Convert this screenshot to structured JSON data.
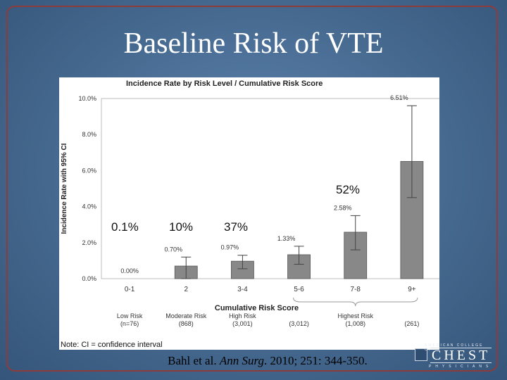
{
  "slide": {
    "title": "Baseline Risk of VTE",
    "overlay_labels": [
      "0.1%",
      "10%",
      "37%",
      "52%"
    ],
    "citation": {
      "authors": "Bahl et al.",
      "journal": "Ann Surg",
      "details": ". 2010; 251: 344-350."
    },
    "logo": {
      "top_text": "AMERICAN COLLEGE OF",
      "main_text": "CHEST",
      "bottom_text": "PHYSICIANS"
    }
  },
  "chart_data": {
    "type": "bar",
    "title": "Incidence Rate by Risk Level / Cumulative Risk Score",
    "xlabel": "Cumulative Risk Score",
    "ylabel": "Incidence Rate with 95% CI",
    "ylim": [
      0,
      10
    ],
    "yticks": [
      "0.0%",
      "2.0%",
      "4.0%",
      "6.0%",
      "8.0%",
      "10.0%"
    ],
    "categories": [
      "0-1",
      "2",
      "3-4",
      "5-6",
      "7-8",
      "9+"
    ],
    "values": [
      0.0,
      0.7,
      0.97,
      1.33,
      2.58,
      6.51
    ],
    "value_labels": [
      "0.00%",
      "0.70%",
      "0.97%",
      "1.33%",
      "2.58%",
      "6.51%"
    ],
    "ci_low": [
      0.0,
      0.0,
      0.55,
      0.8,
      1.6,
      4.5
    ],
    "ci_high": [
      0.0,
      1.2,
      1.3,
      1.8,
      3.5,
      9.6
    ],
    "counts": [
      "(n=76)",
      "(868)",
      "(3,001)",
      "(3,012)",
      "(1,008)",
      "(261)"
    ],
    "risk_groups": [
      "Low Risk",
      "Moderate Risk",
      "High Risk",
      "Highest Risk"
    ],
    "bar_color": "#888888",
    "grid": false,
    "note": "Note:   CI = confidence interval"
  }
}
